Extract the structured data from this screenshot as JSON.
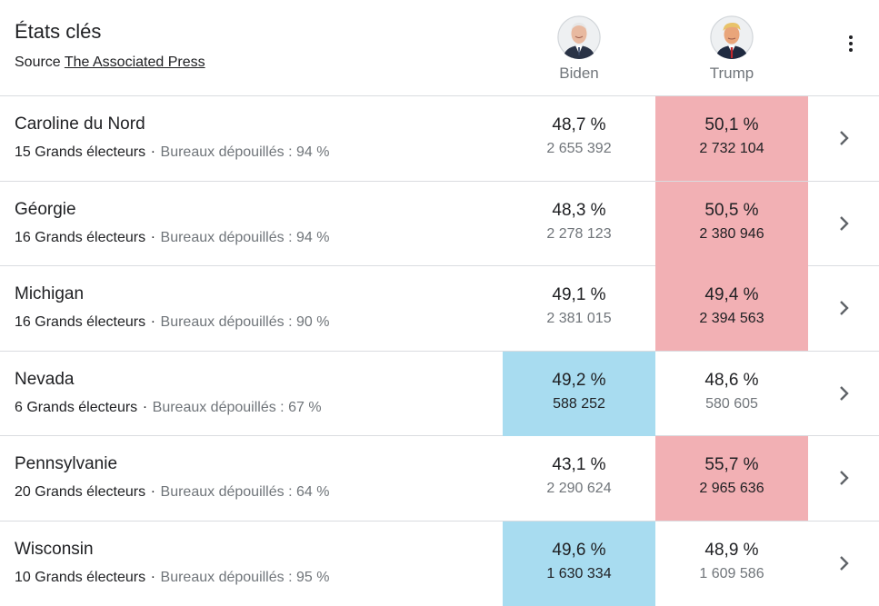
{
  "header": {
    "title": "États clés",
    "source_prefix": "Source",
    "source_link": "The Associated Press"
  },
  "candidates": [
    {
      "name": "Biden"
    },
    {
      "name": "Trump"
    }
  ],
  "colors": {
    "biden_win": "#a8dcf0",
    "trump_win": "#f2b0b4"
  },
  "states": [
    {
      "name": "Caroline du Nord",
      "electors": "15 Grands électeurs",
      "counted": "Bureaux dépouillés : 94 %",
      "biden_pct": "48,7 %",
      "biden_votes": "2 655 392",
      "trump_pct": "50,1 %",
      "trump_votes": "2 732 104",
      "leader": "trump"
    },
    {
      "name": "Géorgie",
      "electors": "16 Grands électeurs",
      "counted": "Bureaux dépouillés : 94 %",
      "biden_pct": "48,3 %",
      "biden_votes": "2 278 123",
      "trump_pct": "50,5 %",
      "trump_votes": "2 380 946",
      "leader": "trump"
    },
    {
      "name": "Michigan",
      "electors": "16 Grands électeurs",
      "counted": "Bureaux dépouillés : 90 %",
      "biden_pct": "49,1 %",
      "biden_votes": "2 381 015",
      "trump_pct": "49,4 %",
      "trump_votes": "2 394 563",
      "leader": "trump"
    },
    {
      "name": "Nevada",
      "electors": "6 Grands électeurs",
      "counted": "Bureaux dépouillés : 67 %",
      "biden_pct": "49,2 %",
      "biden_votes": "588 252",
      "trump_pct": "48,6 %",
      "trump_votes": "580 605",
      "leader": "biden"
    },
    {
      "name": "Pennsylvanie",
      "electors": "20 Grands électeurs",
      "counted": "Bureaux dépouillés : 64 %",
      "biden_pct": "43,1 %",
      "biden_votes": "2 290 624",
      "trump_pct": "55,7 %",
      "trump_votes": "2 965 636",
      "leader": "trump"
    },
    {
      "name": "Wisconsin",
      "electors": "10 Grands électeurs",
      "counted": "Bureaux dépouillés : 95 %",
      "biden_pct": "49,6 %",
      "biden_votes": "1 630 334",
      "trump_pct": "48,9 %",
      "trump_votes": "1 609 586",
      "leader": "biden"
    }
  ]
}
